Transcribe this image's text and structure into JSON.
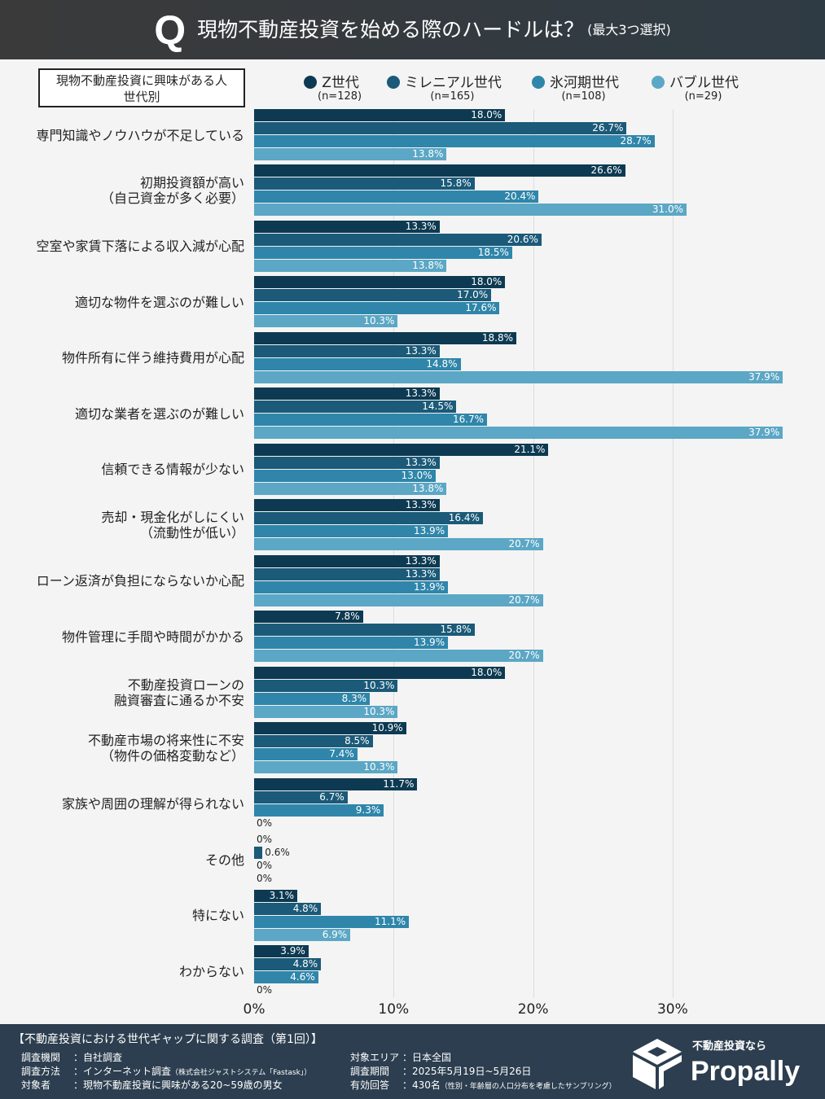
{
  "header": {
    "q": "Q",
    "title": "現物不動産投資を始める際のハードルは？",
    "sub": "(最大3つ選択)"
  },
  "segment_box": {
    "line1": "現物不動産投資に興味がある人",
    "line2": "世代別"
  },
  "colors": {
    "z": "#0d3a52",
    "millennial": "#1b5a78",
    "hyogaki": "#2f86aa",
    "bubble": "#5ba7c5"
  },
  "chart_data": {
    "type": "bar",
    "orientation": "horizontal",
    "grid": true,
    "xlim": [
      0,
      38
    ],
    "xticks": [
      "0%",
      "10%",
      "20%",
      "30%"
    ],
    "legend_position": "top",
    "series": [
      {
        "name": "Z世代",
        "n": "(n=128)",
        "values": [
          18.0,
          26.6,
          13.3,
          18.0,
          18.8,
          13.3,
          21.1,
          13.3,
          13.3,
          7.8,
          18.0,
          10.9,
          11.7,
          0,
          3.1,
          3.9
        ]
      },
      {
        "name": "ミレニアル世代",
        "n": "(n=165)",
        "values": [
          26.7,
          15.8,
          20.6,
          17.0,
          13.3,
          14.5,
          13.3,
          16.4,
          13.3,
          15.8,
          10.3,
          8.5,
          6.7,
          0.6,
          4.8,
          4.8
        ]
      },
      {
        "name": "氷河期世代",
        "n": "(n=108)",
        "values": [
          28.7,
          20.4,
          18.5,
          17.6,
          14.8,
          16.7,
          13.0,
          13.9,
          13.9,
          13.9,
          8.3,
          7.4,
          9.3,
          0,
          11.1,
          4.6
        ]
      },
      {
        "name": "バブル世代",
        "n": "(n=29)",
        "values": [
          13.8,
          31.0,
          13.8,
          10.3,
          37.9,
          37.9,
          13.8,
          20.7,
          20.7,
          20.7,
          10.3,
          10.3,
          0,
          0,
          6.9,
          0
        ]
      }
    ],
    "categories": [
      "専門知識やノウハウが不足している",
      "初期投資額が高い\n（自己資金が多く必要）",
      "空室や家賃下落による収入減が心配",
      "適切な物件を選ぶのが難しい",
      "物件所有に伴う維持費用が心配",
      "適切な業者を選ぶのが難しい",
      "信頼できる情報が少ない",
      "売却・現金化がしにくい\n（流動性が低い）",
      "ローン返済が負担にならないか心配",
      "物件管理に手間や時間がかかる",
      "不動産投資ローンの\n融資審査に通るか不安",
      "不動産市場の将来性に不安\n（物件の価格変動など）",
      "家族や周囲の理解が得られない",
      "その他",
      "特にない",
      "わからない"
    ]
  },
  "footer": {
    "title": "【不動産投資における世代ギャップに関する調査（第1回）】",
    "rows": [
      {
        "k": "調査機関",
        "v": "：自社調査",
        "s": ""
      },
      {
        "k": "調査方法",
        "v": "：インターネット調査",
        "s": "（株式会社ジャストシステム「Fastask」）"
      },
      {
        "k": "対象者",
        "v": "：現物不動産投資に興味がある20~59歳の男女",
        "s": ""
      },
      {
        "k": "対象エリア",
        "v": "：日本全国",
        "s": ""
      },
      {
        "k": "調査期間",
        "v": "：2025年5月19日~5月26日",
        "s": ""
      },
      {
        "k": "有効回答",
        "v": "：430名",
        "s": "（性別・年齢層の人口分布を考慮したサンプリング）"
      }
    ],
    "logo_tag": "不動産投資なら",
    "logo_name": "Propally"
  }
}
